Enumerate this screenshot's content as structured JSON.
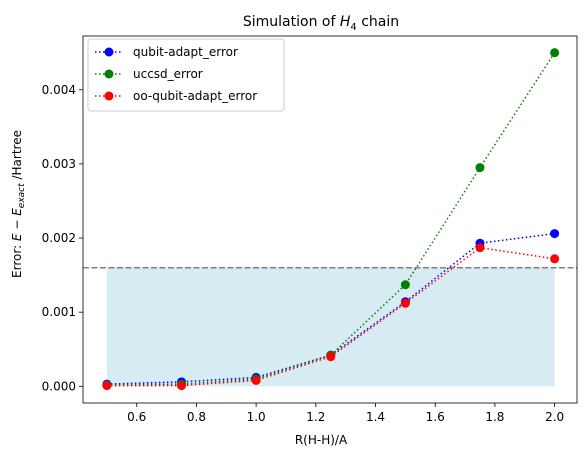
{
  "chart_data": {
    "type": "line",
    "title_prefix": "Simulation of ",
    "title_math_main": "H",
    "title_math_sub": "4",
    "title_suffix": " chain",
    "xlabel": "R(H-H)/A",
    "ylabel_prefix": "Error: ",
    "ylabel_math": "E − E",
    "ylabel_sub": "exact",
    "ylabel_suffix": " /Hartree",
    "xlim": [
      0.42,
      2.075
    ],
    "ylim": [
      -0.000225,
      0.004725
    ],
    "xticks": [
      0.6,
      0.8,
      1.0,
      1.2,
      1.4,
      1.6,
      1.8,
      2.0
    ],
    "xtick_labels": [
      "0.6",
      "0.8",
      "1.0",
      "1.2",
      "1.4",
      "1.6",
      "1.8",
      "2.0"
    ],
    "yticks": [
      0.0,
      0.001,
      0.002,
      0.003,
      0.004
    ],
    "ytick_labels": [
      "0.000",
      "0.001",
      "0.002",
      "0.003",
      "0.004"
    ],
    "threshold": 0.0016,
    "threshold_color": "#808080",
    "fill_color": "#add8e6",
    "x": [
      0.5,
      0.75,
      1.0,
      1.25,
      1.5,
      1.75,
      2.0
    ],
    "series": [
      {
        "name": "qubit-adapt_error",
        "color": "#0000ff",
        "values": [
          3e-05,
          6e-05,
          0.00012,
          0.00042,
          0.00114,
          0.00193,
          0.00206
        ]
      },
      {
        "name": "uccsd_error",
        "color": "#008000",
        "values": [
          2e-05,
          3e-05,
          0.0001,
          0.00042,
          0.00137,
          0.00295,
          0.0045
        ]
      },
      {
        "name": "oo-qubit-adapt_error",
        "color": "#ff0000",
        "values": [
          1e-05,
          1e-05,
          8e-05,
          0.0004,
          0.00112,
          0.00187,
          0.00172
        ]
      }
    ],
    "legend_position": "top-left",
    "grid": false
  }
}
